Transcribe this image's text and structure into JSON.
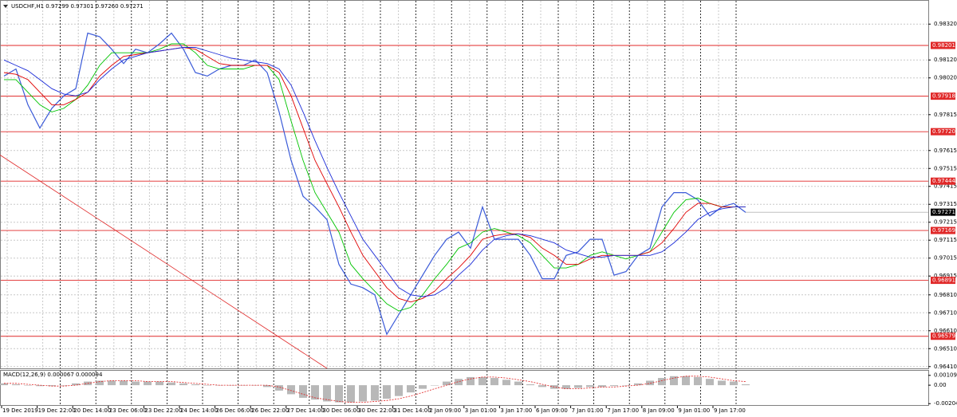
{
  "chart_data": {
    "type": "line",
    "title": "USDCHF,H1 0.97299 0.97301 0.97260 0.97271",
    "ylim": [
      0.964,
      0.9845
    ],
    "yticks": [
      {
        "value": 0.9832,
        "label": "0.98320"
      },
      {
        "value": 0.9812,
        "label": "0.98120"
      },
      {
        "value": 0.9802,
        "label": "0.98020"
      },
      0.97815,
      0.97615,
      0.97515,
      0.97415,
      0.97315,
      0.97215,
      0.97115,
      0.97015,
      0.96915,
      {
        "value": 0.9681,
        "label": "0.96810"
      },
      {
        "value": 0.9671,
        "label": "0.96710"
      },
      {
        "value": 0.9661,
        "label": "0.96610"
      },
      {
        "value": 0.9651,
        "label": "0.96510"
      },
      {
        "value": 0.9641,
        "label": "0.96410"
      }
    ],
    "grid": true,
    "time_labels": [
      "19 Dec 2019",
      "19 Dec 22:00",
      "20 Dec 14:00",
      "23 Dec 06:00",
      "23 Dec 22:00",
      "24 Dec 14:00",
      "26 Dec 06:00",
      "26 Dec 22:00",
      "27 Dec 14:00",
      "30 Dec 06:00",
      "30 Dec 22:00",
      "31 Dec 14:00",
      "2 Jan 09:00",
      "3 Jan 01:00",
      "3 Jan 17:00",
      "6 Jan 09:00",
      "7 Jan 01:00",
      "7 Jan 17:00",
      "8 Jan 09:00",
      "9 Jan 01:00",
      "9 Jan 17:00"
    ],
    "levels": [
      0.98201,
      0.97918,
      {
        "value": 0.9772,
        "label": "0.97720"
      },
      0.97444,
      0.97169,
      0.96891,
      0.96579
    ],
    "level_color": "#e02828",
    "current_price": 0.97271,
    "trendline": {
      "from": 0.9759,
      "to": 0.964,
      "color": "#e02828"
    },
    "series": [
      {
        "color": "#3a5ad8",
        "values": [
          0.9803,
          0.9807,
          0.9787,
          0.9774,
          0.9785,
          0.9792,
          0.9796,
          0.9827,
          0.9825,
          0.9818,
          0.981,
          0.9818,
          0.9816,
          0.9821,
          0.9827,
          0.9818,
          0.9805,
          0.9803,
          0.9807,
          0.9809,
          0.9809,
          0.9812,
          0.9805,
          0.9783,
          0.9756,
          0.9736,
          0.973,
          0.9723,
          0.9698,
          0.9687,
          0.9685,
          0.9681,
          0.9659,
          0.967,
          0.9681,
          0.9692,
          0.9703,
          0.9712,
          0.9716,
          0.9707,
          0.973,
          0.9712,
          0.9712,
          0.9712,
          0.9703,
          0.969,
          0.969,
          0.9703,
          0.9705,
          0.9712,
          0.9712,
          0.9692,
          0.9694,
          0.9703,
          0.9707,
          0.973,
          0.9738,
          0.9738,
          0.9734,
          0.9725,
          0.973,
          0.9732,
          0.9727
        ]
      },
      {
        "color": "#00c400",
        "values": [
          0.9801,
          0.9801,
          0.9794,
          0.9787,
          0.9783,
          0.9785,
          0.979,
          0.9798,
          0.9809,
          0.9816,
          0.9816,
          0.9816,
          0.9816,
          0.9818,
          0.9821,
          0.9821,
          0.9816,
          0.9809,
          0.9807,
          0.9807,
          0.9807,
          0.9809,
          0.9809,
          0.9801,
          0.9778,
          0.9756,
          0.9738,
          0.9727,
          0.9716,
          0.9698,
          0.969,
          0.9683,
          0.9676,
          0.9672,
          0.9674,
          0.9681,
          0.969,
          0.9698,
          0.9707,
          0.971,
          0.9716,
          0.9718,
          0.9716,
          0.9714,
          0.971,
          0.9703,
          0.9696,
          0.9696,
          0.9698,
          0.9703,
          0.9705,
          0.9703,
          0.9701,
          0.9703,
          0.9705,
          0.9716,
          0.9727,
          0.9734,
          0.9735,
          0.9732,
          0.973,
          0.973,
          0.973
        ]
      },
      {
        "color": "#e00000",
        "values": [
          0.9805,
          0.9804,
          0.9801,
          0.9794,
          0.9787,
          0.9787,
          0.979,
          0.9794,
          0.9803,
          0.9809,
          0.9814,
          0.9815,
          0.9816,
          0.9817,
          0.9818,
          0.9819,
          0.9818,
          0.9814,
          0.981,
          0.9809,
          0.9809,
          0.9809,
          0.9809,
          0.9805,
          0.9792,
          0.9774,
          0.9756,
          0.9743,
          0.973,
          0.9716,
          0.9703,
          0.9694,
          0.9685,
          0.9679,
          0.9677,
          0.9679,
          0.9683,
          0.969,
          0.9696,
          0.9703,
          0.9712,
          0.9714,
          0.9715,
          0.9715,
          0.9713,
          0.9707,
          0.9703,
          0.9698,
          0.9698,
          0.9701,
          0.9703,
          0.9703,
          0.9703,
          0.9703,
          0.9705,
          0.971,
          0.9718,
          0.9727,
          0.9732,
          0.9732,
          0.973,
          0.973,
          0.973
        ]
      },
      {
        "color": "#1c2cd8",
        "values": [
          0.9812,
          0.9809,
          0.9806,
          0.9801,
          0.9796,
          0.9793,
          0.9792,
          0.9794,
          0.9801,
          0.9807,
          0.9812,
          0.9814,
          0.9816,
          0.9817,
          0.9818,
          0.9819,
          0.9819,
          0.9817,
          0.9815,
          0.9813,
          0.9812,
          0.9811,
          0.981,
          0.9807,
          0.9798,
          0.9783,
          0.9767,
          0.9752,
          0.9738,
          0.9725,
          0.9712,
          0.9703,
          0.9694,
          0.9685,
          0.9681,
          0.968,
          0.9681,
          0.9685,
          0.9692,
          0.9698,
          0.9706,
          0.9712,
          0.9714,
          0.9715,
          0.9714,
          0.9712,
          0.971,
          0.9706,
          0.9704,
          0.9702,
          0.9702,
          0.9703,
          0.9703,
          0.9703,
          0.9703,
          0.9705,
          0.971,
          0.9716,
          0.9723,
          0.9727,
          0.9729,
          0.973,
          0.973
        ]
      }
    ],
    "macd": {
      "label": "MACD(12,26,9) 0.000067 0.000094",
      "ylim": [
        -0.0022,
        0.0016
      ],
      "yticks": [
        0.001092,
        {
          "value": 0,
          "label": "0.00"
        },
        -0.002044
      ],
      "histogram_color": "#b8b8b8",
      "signal_color": "#e02020",
      "histogram": [
        0.0002,
        0.0001,
        0.0,
        -0.0001,
        -0.0001,
        0.0,
        0.0002,
        0.0004,
        0.0005,
        0.0005,
        0.0005,
        0.0004,
        0.0004,
        0.0004,
        0.0003,
        0.0002,
        0.0001,
        0.0,
        0.0,
        0.0,
        0.0,
        0.0,
        -0.0002,
        -0.0006,
        -0.001,
        -0.0014,
        -0.0016,
        -0.0018,
        -0.0019,
        -0.0019,
        -0.0018,
        -0.0017,
        -0.0015,
        -0.0012,
        -0.0008,
        -0.0004,
        0.0,
        0.0004,
        0.0007,
        0.0009,
        0.0009,
        0.0008,
        0.0006,
        0.0004,
        0.0001,
        -0.0002,
        -0.0004,
        -0.0004,
        -0.0003,
        -0.0002,
        -0.0002,
        -0.0001,
        0.0,
        0.0002,
        0.0005,
        0.0008,
        0.001,
        0.001,
        0.0009,
        0.0007,
        0.0005,
        0.0004,
        0.0001
      ],
      "signal": [
        0.0002,
        0.0002,
        0.0001,
        0.0,
        -0.0001,
        -0.0001,
        0.0,
        0.0002,
        0.0004,
        0.0005,
        0.0005,
        0.0005,
        0.0004,
        0.0004,
        0.0004,
        0.0003,
        0.0002,
        0.0001,
        0.0,
        0.0,
        0.0,
        0.0,
        0.0,
        -0.0002,
        -0.0006,
        -0.001,
        -0.0014,
        -0.0016,
        -0.0018,
        -0.0019,
        -0.0019,
        -0.0018,
        -0.0017,
        -0.0015,
        -0.0012,
        -0.0008,
        -0.0004,
        0.0,
        0.0004,
        0.0007,
        0.0009,
        0.0009,
        0.0008,
        0.0006,
        0.0004,
        0.0001,
        -0.0002,
        -0.0004,
        -0.0004,
        -0.0003,
        -0.0002,
        -0.0002,
        -0.0001,
        0.0,
        0.0002,
        0.0005,
        0.0008,
        0.001,
        0.001,
        0.0009,
        0.0007,
        0.0005,
        0.0004
      ]
    }
  }
}
